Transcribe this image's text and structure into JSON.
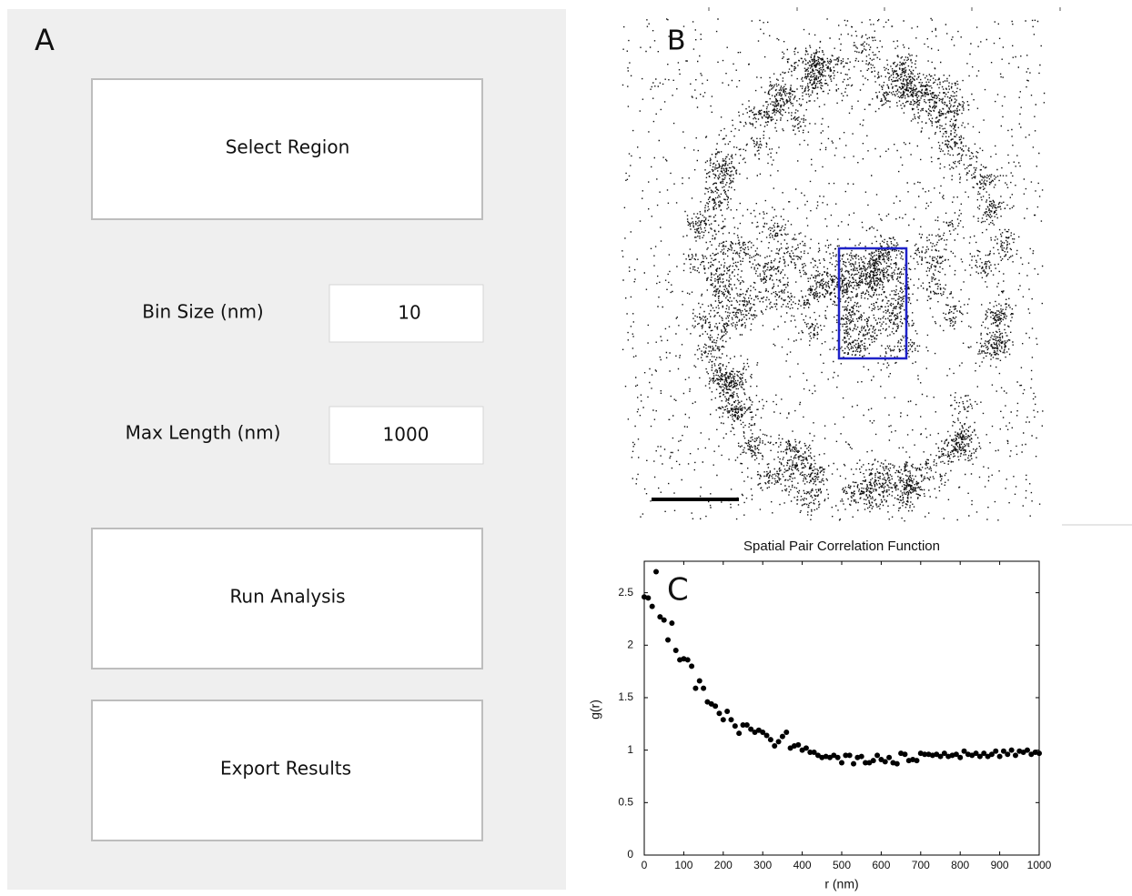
{
  "panel_a": {
    "label": "A",
    "select_button": "Select Region",
    "bin_size_label": "Bin Size (nm)",
    "bin_size_value": "10",
    "max_length_label": "Max Length (nm)",
    "max_length_value": "1000",
    "run_button": "Run Analysis",
    "export_button": "Export Results"
  },
  "panel_b": {
    "label": "B"
  },
  "chart_data": {
    "type": "scatter",
    "panel_label": "C",
    "title": "Spatial Pair Correlation Function",
    "x_label": "r (nm)",
    "y_label": "g(r)",
    "color": "#000000",
    "xlim": [
      0,
      1000
    ],
    "ylim": [
      0,
      2.8
    ],
    "xticks": [
      0,
      100,
      200,
      300,
      400,
      500,
      600,
      700,
      800,
      900,
      1000
    ],
    "yticks": [
      0,
      0.5,
      1,
      1.5,
      2,
      2.5
    ],
    "x": [
      0,
      10,
      20,
      30,
      40,
      50,
      60,
      70,
      80,
      90,
      100,
      110,
      120,
      130,
      140,
      150,
      160,
      170,
      180,
      190,
      200,
      210,
      220,
      230,
      240,
      250,
      260,
      270,
      280,
      290,
      300,
      310,
      320,
      330,
      340,
      350,
      360,
      370,
      380,
      390,
      400,
      410,
      420,
      430,
      440,
      450,
      460,
      470,
      480,
      490,
      500,
      510,
      520,
      530,
      540,
      550,
      560,
      570,
      580,
      590,
      600,
      610,
      620,
      630,
      640,
      650,
      660,
      670,
      680,
      690,
      700,
      710,
      720,
      730,
      740,
      750,
      760,
      770,
      780,
      790,
      800,
      810,
      820,
      830,
      840,
      850,
      860,
      870,
      880,
      890,
      900,
      910,
      920,
      930,
      940,
      950,
      960,
      970,
      980,
      990,
      1000
    ],
    "y": [
      2.46,
      2.45,
      2.37,
      2.7,
      2.27,
      2.24,
      2.05,
      2.21,
      1.95,
      1.86,
      1.87,
      1.86,
      1.8,
      1.59,
      1.66,
      1.59,
      1.46,
      1.44,
      1.42,
      1.35,
      1.29,
      1.37,
      1.29,
      1.23,
      1.16,
      1.24,
      1.24,
      1.2,
      1.17,
      1.19,
      1.17,
      1.14,
      1.1,
      1.04,
      1.08,
      1.13,
      1.17,
      1.02,
      1.04,
      1.05,
      1.0,
      1.02,
      0.98,
      0.98,
      0.95,
      0.93,
      0.94,
      0.93,
      0.95,
      0.93,
      0.88,
      0.95,
      0.95,
      0.87,
      0.93,
      0.94,
      0.88,
      0.88,
      0.9,
      0.95,
      0.91,
      0.89,
      0.93,
      0.88,
      0.87,
      0.97,
      0.96,
      0.9,
      0.91,
      0.9,
      0.97,
      0.96,
      0.96,
      0.95,
      0.96,
      0.94,
      0.97,
      0.94,
      0.95,
      0.96,
      0.93,
      0.99,
      0.96,
      0.95,
      0.97,
      0.94,
      0.97,
      0.94,
      0.96,
      0.99,
      0.94,
      0.99,
      0.96,
      1.0,
      0.95,
      0.99,
      0.98,
      1.0,
      0.96,
      0.98,
      0.97
    ]
  }
}
